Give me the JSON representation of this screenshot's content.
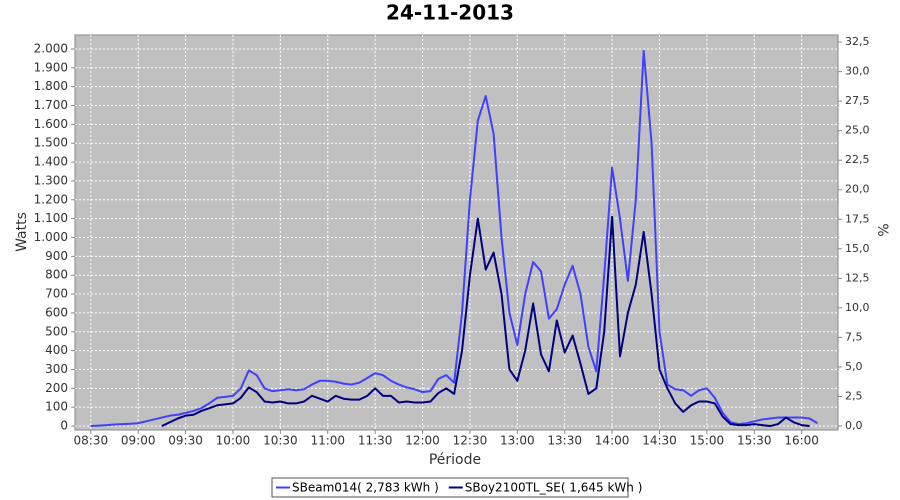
{
  "chart_data": {
    "type": "line",
    "title": "24-11-2013",
    "x_label": "Période",
    "y_label": "Watts",
    "y2_label": "%",
    "x": [
      "08:30",
      "08:35",
      "08:40",
      "08:45",
      "08:50",
      "08:55",
      "09:00",
      "09:05",
      "09:10",
      "09:15",
      "09:20",
      "09:25",
      "09:30",
      "09:35",
      "09:40",
      "09:45",
      "09:50",
      "09:55",
      "10:00",
      "10:05",
      "10:10",
      "10:15",
      "10:20",
      "10:25",
      "10:30",
      "10:35",
      "10:40",
      "10:45",
      "10:50",
      "10:55",
      "11:00",
      "11:05",
      "11:10",
      "11:15",
      "11:20",
      "11:25",
      "11:30",
      "11:35",
      "11:40",
      "11:45",
      "11:50",
      "11:55",
      "12:00",
      "12:05",
      "12:10",
      "12:15",
      "12:20",
      "12:25",
      "12:30",
      "12:35",
      "12:40",
      "12:45",
      "12:50",
      "12:55",
      "13:00",
      "13:05",
      "13:10",
      "13:15",
      "13:20",
      "13:25",
      "13:30",
      "13:35",
      "13:40",
      "13:45",
      "13:50",
      "13:55",
      "14:00",
      "14:05",
      "14:10",
      "14:15",
      "14:20",
      "14:25",
      "14:30",
      "14:35",
      "14:40",
      "14:45",
      "14:50",
      "14:55",
      "15:00",
      "15:05",
      "15:10",
      "15:15",
      "15:20",
      "15:25",
      "15:30",
      "15:35",
      "15:40",
      "15:45",
      "15:50",
      "15:55",
      "16:00",
      "16:05",
      "16:10"
    ],
    "series": [
      {
        "name": "SBeam014( 2,783 kWh )",
        "color": "#4040ff",
        "values": [
          0,
          2,
          5,
          8,
          10,
          12,
          15,
          25,
          35,
          45,
          55,
          60,
          70,
          80,
          95,
          120,
          150,
          155,
          160,
          200,
          295,
          270,
          200,
          185,
          190,
          195,
          190,
          195,
          220,
          240,
          240,
          235,
          225,
          220,
          230,
          255,
          280,
          270,
          240,
          220,
          205,
          195,
          180,
          185,
          250,
          270,
          230,
          600,
          1200,
          1620,
          1750,
          1550,
          1000,
          600,
          430,
          700,
          870,
          820,
          570,
          620,
          750,
          850,
          700,
          420,
          290,
          800,
          1370,
          1100,
          770,
          1200,
          1990,
          1500,
          500,
          220,
          195,
          190,
          160,
          190,
          200,
          150,
          70,
          20,
          10,
          15,
          25,
          35,
          40,
          45,
          45,
          45,
          45,
          40,
          15
        ]
      },
      {
        "name": "SBoy2100TL_SE( 1,645 kWh )",
        "color": "#000080",
        "values": [
          null,
          null,
          null,
          null,
          null,
          null,
          null,
          null,
          null,
          0,
          20,
          40,
          55,
          60,
          80,
          95,
          110,
          115,
          120,
          150,
          205,
          180,
          130,
          125,
          130,
          120,
          120,
          130,
          160,
          145,
          130,
          160,
          145,
          140,
          140,
          160,
          200,
          160,
          160,
          125,
          130,
          125,
          125,
          130,
          175,
          200,
          170,
          400,
          800,
          1100,
          830,
          920,
          700,
          300,
          240,
          400,
          650,
          380,
          290,
          560,
          390,
          480,
          330,
          170,
          200,
          500,
          1110,
          370,
          600,
          750,
          1030,
          700,
          300,
          200,
          120,
          75,
          110,
          130,
          130,
          120,
          50,
          10,
          5,
          5,
          10,
          5,
          0,
          10,
          45,
          20,
          5,
          0,
          null
        ]
      }
    ],
    "xlim": [
      "08:20",
      "16:23"
    ],
    "xticks": [
      "08:30",
      "09:00",
      "09:30",
      "10:00",
      "10:30",
      "11:00",
      "11:30",
      "12:00",
      "12:30",
      "13:00",
      "13:30",
      "14:00",
      "14:30",
      "15:00",
      "15:30",
      "16:00"
    ],
    "ylim": [
      -21,
      2074
    ],
    "yticks": [
      0,
      100,
      200,
      300,
      400,
      500,
      600,
      700,
      800,
      900,
      {
        "value": 1000,
        "label": "1.000"
      },
      {
        "value": 1100,
        "label": "1.100"
      },
      {
        "value": 1200,
        "label": "1.200"
      },
      {
        "value": 1300,
        "label": "1.300"
      },
      {
        "value": 1400,
        "label": "1.400"
      },
      {
        "value": 1500,
        "label": "1.500"
      },
      {
        "value": 1600,
        "label": "1.600"
      },
      {
        "value": 1700,
        "label": "1.700"
      },
      {
        "value": 1800,
        "label": "1.800"
      },
      {
        "value": 1900,
        "label": "1.900"
      },
      {
        "value": 2000,
        "label": "2.000"
      }
    ],
    "y2lim": [
      -0.34,
      33.1
    ],
    "y2ticks": [
      {
        "value": 0,
        "label": "0,0"
      },
      {
        "value": 2.5,
        "label": "2,5"
      },
      {
        "value": 5,
        "label": "5,0"
      },
      {
        "value": 7.5,
        "label": "7,5"
      },
      {
        "value": 10,
        "label": "10,0"
      },
      {
        "value": 12.5,
        "label": "12,5"
      },
      {
        "value": 15,
        "label": "15,0"
      },
      {
        "value": 17.5,
        "label": "17,5"
      },
      {
        "value": 20,
        "label": "20,0"
      },
      {
        "value": 22.5,
        "label": "22,5"
      },
      {
        "value": 25,
        "label": "25,0"
      },
      {
        "value": 27.5,
        "label": "27,5"
      },
      {
        "value": 30,
        "label": "30,0"
      },
      {
        "value": 32.5,
        "label": "32,5"
      }
    ],
    "grid": true,
    "legend": "bottom"
  }
}
